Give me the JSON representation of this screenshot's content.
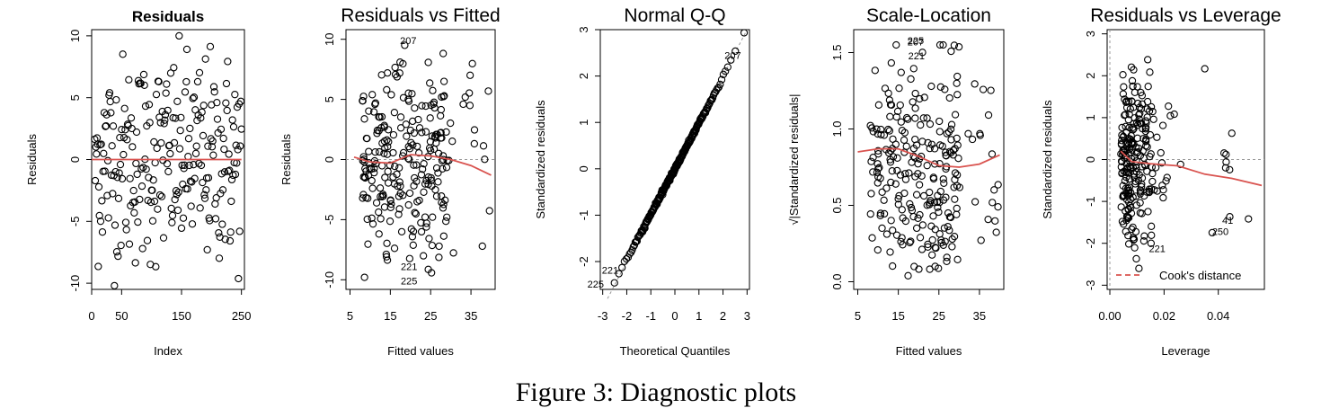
{
  "caption": "Figure 3: Diagnostic plots",
  "colors": {
    "points": "#000000",
    "smooth": "#d9534f",
    "reference": "#999999"
  },
  "chart_data": [
    {
      "type": "scatter",
      "title": "Residuals",
      "xlabel": "Index",
      "ylabel": "Residuals",
      "xlim": [
        0,
        255
      ],
      "ylim": [
        -10.5,
        10.5
      ],
      "xticks": [
        0,
        50,
        150,
        250
      ],
      "yticks": [
        -10,
        -5,
        0,
        5,
        10
      ],
      "n": 250,
      "smooth": {
        "x": [
          0,
          250
        ],
        "y": [
          0,
          0
        ]
      },
      "annotations": []
    },
    {
      "type": "scatter",
      "title": "Residuals vs Fitted",
      "xlabel": "Fitted values",
      "ylabel": "Residuals",
      "xlim": [
        4,
        41
      ],
      "ylim": [
        -10.8,
        10.8
      ],
      "xticks": [
        5,
        15,
        25,
        35
      ],
      "yticks": [
        -10,
        -5,
        0,
        5,
        10
      ],
      "n": 250,
      "refline": 0,
      "smooth": {
        "x": [
          6,
          10,
          15,
          20,
          25,
          30,
          35,
          40
        ],
        "y": [
          0.2,
          -0.2,
          -0.3,
          0.4,
          0.3,
          0.0,
          -0.5,
          -1.3
        ]
      },
      "annotations": [
        {
          "label": "207",
          "x": 21.5,
          "y": 9.9
        },
        {
          "label": "221",
          "x": 21.7,
          "y": -8.9
        },
        {
          "label": "225",
          "x": 21.7,
          "y": -10.1
        }
      ]
    },
    {
      "type": "scatter",
      "title": "Normal Q-Q",
      "xlabel": "Theoretical Quantiles",
      "ylabel": "Standardized residuals",
      "xlim": [
        -3.1,
        3.1
      ],
      "ylim": [
        -2.6,
        3.0
      ],
      "xticks": [
        -3,
        -2,
        -1,
        0,
        1,
        2,
        3
      ],
      "yticks": [
        -2,
        -1,
        0,
        1,
        2,
        3
      ],
      "n": 250,
      "qq": true,
      "annotations": [
        {
          "label": "207",
          "x": 2.75,
          "y": 2.45
        },
        {
          "label": "221",
          "x": -2.35,
          "y": -2.18
        },
        {
          "label": "225",
          "x": -2.95,
          "y": -2.48
        }
      ]
    },
    {
      "type": "scatter",
      "title": "Scale-Location",
      "xlabel": "Fitted values",
      "ylabel": "√|Standardized residuals|",
      "xlim": [
        4,
        41
      ],
      "ylim": [
        -0.05,
        1.65
      ],
      "xticks": [
        5,
        15,
        25,
        35
      ],
      "yticks": [
        0.0,
        0.5,
        1.0,
        1.5
      ],
      "n": 250,
      "smooth": {
        "x": [
          5,
          10,
          15,
          20,
          25,
          30,
          35,
          40
        ],
        "y": [
          0.85,
          0.87,
          0.87,
          0.82,
          0.76,
          0.75,
          0.77,
          0.83
        ]
      },
      "annotations": [
        {
          "label": "207",
          "x": 21.3,
          "y": 1.57
        },
        {
          "label": "225",
          "x": 21.3,
          "y": 1.58
        },
        {
          "label": "221",
          "x": 21.5,
          "y": 1.48
        }
      ]
    },
    {
      "type": "scatter",
      "title": "Residuals vs Leverage",
      "xlabel": "Leverage",
      "ylabel": "Standardized residuals",
      "xlim": [
        -0.001,
        0.057
      ],
      "ylim": [
        -3.1,
        3.1
      ],
      "xticks": [
        0.0,
        0.02,
        0.04
      ],
      "yticks": [
        -3,
        -2,
        -1,
        0,
        1,
        2,
        3
      ],
      "n": 250,
      "refline": 0,
      "vrefline": 0,
      "smooth": {
        "x": [
          0.004,
          0.008,
          0.015,
          0.025,
          0.035,
          0.045,
          0.056
        ],
        "y": [
          0.2,
          -0.05,
          -0.1,
          -0.15,
          -0.35,
          -0.45,
          -0.62
        ]
      },
      "legend": {
        "position": "bottom-right",
        "label": "Cook's distance"
      },
      "annotations": [
        {
          "label": "41",
          "x": 0.0455,
          "y": -1.45
        },
        {
          "label": "250",
          "x": 0.0438,
          "y": -1.72
        },
        {
          "label": "221",
          "x": 0.0205,
          "y": -2.12
        }
      ]
    }
  ]
}
